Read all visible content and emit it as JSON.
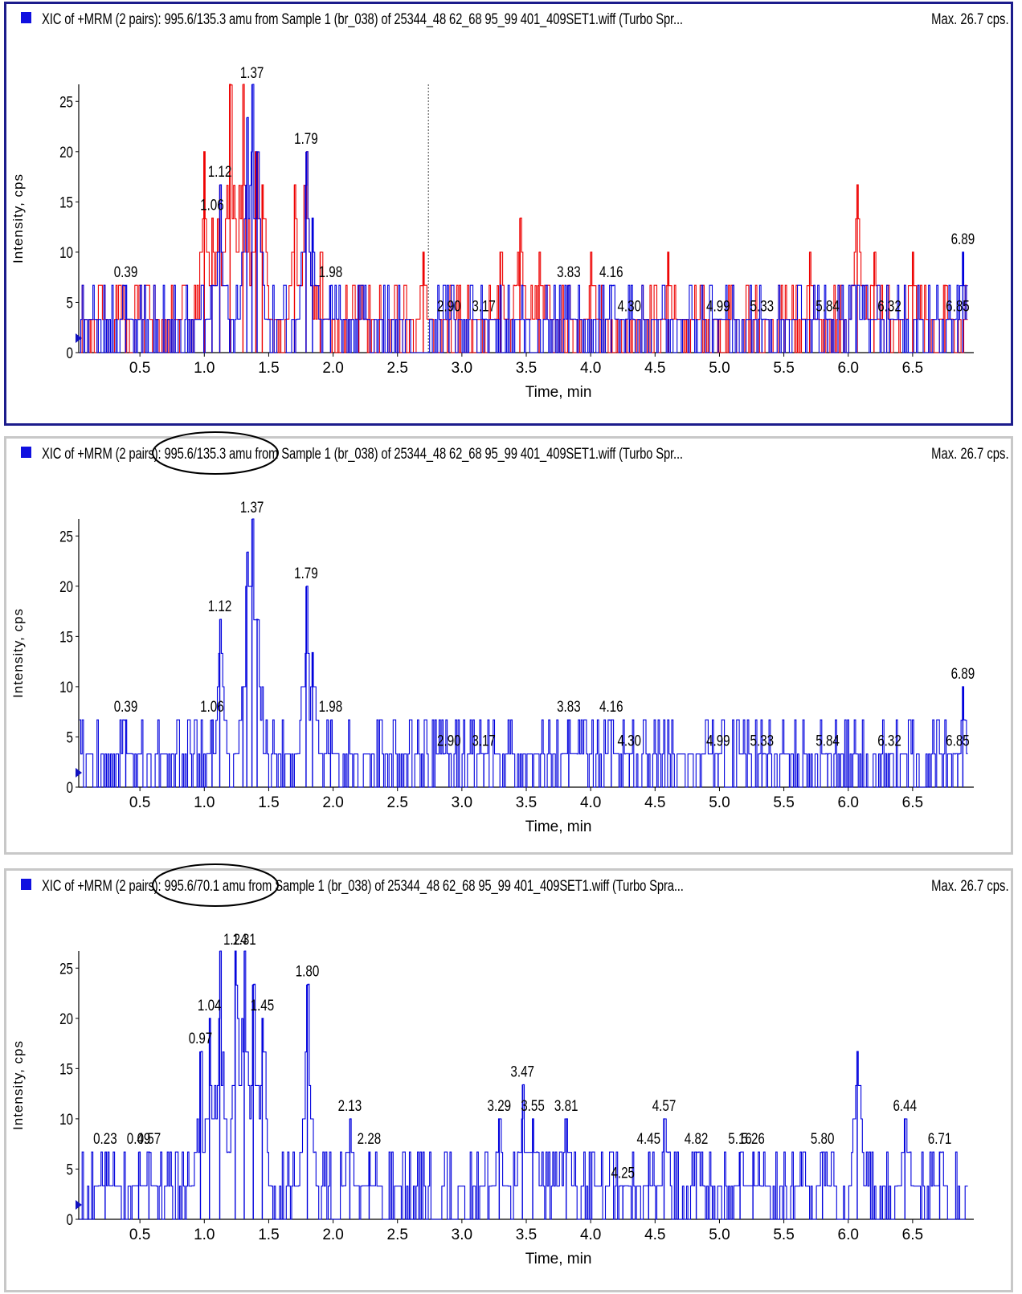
{
  "panels": [
    {
      "title": "XIC of +MRM (2 pairs): 995.6/135.3 amu from Sample 1 (br_038) of 25344_48 62_68 95_99 401_409SET1.wiff (Turbo Spr...",
      "max_label": "Max. 26.7 cps.",
      "selected": true
    },
    {
      "title": "XIC of +MRM (2 pairs): 995.6/135.3 amu from Sample 1 (br_038) of 25344_48 62_68 95_99 401_409SET1.wiff (Turbo Spr...",
      "max_label": "Max. 26.7 cps.",
      "selected": false
    },
    {
      "title": "XIC of +MRM (2 pairs): 995.6/70.1 amu from Sample 1 (br_038) of 25344_48 62_68 95_99 401_409SET1.wiff (Turbo Spra...",
      "max_label": "Max. 26.7 cps.",
      "selected": false
    }
  ],
  "colors": {
    "blue_trace": "#0000dd",
    "red_trace": "#ee0000",
    "selected_border": "#1c1c8c"
  },
  "chart_data": [
    {
      "type": "line",
      "xlabel": "Time, min",
      "ylabel": "Intensity, cps",
      "xlim": [
        0,
        6.95
      ],
      "ylim": [
        0,
        26.7
      ],
      "xticks": [
        0.5,
        1.0,
        1.5,
        2.0,
        2.5,
        3.0,
        3.5,
        4.0,
        4.5,
        5.0,
        5.5,
        6.0,
        6.5
      ],
      "yticks": [
        0,
        5,
        10,
        15,
        20,
        25
      ],
      "marker_line_x": 2.74,
      "series": [
        {
          "color": "#0000dd",
          "peaks": [
            [
              0.39,
              6.7
            ],
            [
              1.06,
              6.7
            ],
            [
              1.12,
              16.7
            ],
            [
              1.37,
              26.7
            ],
            [
              1.33,
              23.4
            ],
            [
              1.41,
              20
            ],
            [
              1.79,
              20
            ],
            [
              1.84,
              13.4
            ],
            [
              1.98,
              6.7
            ],
            [
              2.9,
              3.3
            ],
            [
              3.17,
              3.3
            ],
            [
              3.83,
              6.7
            ],
            [
              4.16,
              6.7
            ],
            [
              4.3,
              3.3
            ],
            [
              4.99,
              3.3
            ],
            [
              5.33,
              3.3
            ],
            [
              5.84,
              3.3
            ],
            [
              6.32,
              3.3
            ],
            [
              6.85,
              3.3
            ],
            [
              6.89,
              10
            ]
          ]
        },
        {
          "color": "#ee0000",
          "peaks": [
            [
              1.0,
              20
            ],
            [
              1.06,
              13.4
            ],
            [
              1.12,
              16.7
            ],
            [
              1.2,
              26.7
            ],
            [
              1.3,
              26.7
            ],
            [
              1.4,
              20
            ],
            [
              1.45,
              16.7
            ],
            [
              1.7,
              16.7
            ],
            [
              1.79,
              20
            ],
            [
              1.9,
              10
            ],
            [
              2.2,
              6.7
            ],
            [
              2.7,
              10
            ],
            [
              3.3,
              10
            ],
            [
              3.45,
              13.4
            ],
            [
              3.6,
              10
            ],
            [
              4.0,
              10
            ],
            [
              4.6,
              10
            ],
            [
              5.7,
              10
            ],
            [
              6.07,
              16.7
            ],
            [
              6.2,
              10
            ],
            [
              6.5,
              10
            ],
            [
              6.75,
              6.7
            ]
          ]
        }
      ],
      "peak_labels": [
        {
          "x": 0.39,
          "text": "0.39"
        },
        {
          "x": 1.06,
          "text": "1.06"
        },
        {
          "x": 1.12,
          "text": "1.12"
        },
        {
          "x": 1.37,
          "text": "1.37"
        },
        {
          "x": 1.79,
          "text": "1.79"
        },
        {
          "x": 1.98,
          "text": "1.98"
        },
        {
          "x": 2.9,
          "text": "2.90"
        },
        {
          "x": 3.17,
          "text": "3.17"
        },
        {
          "x": 3.83,
          "text": "3.83"
        },
        {
          "x": 4.16,
          "text": "4.16"
        },
        {
          "x": 4.3,
          "text": "4.30"
        },
        {
          "x": 4.99,
          "text": "4.99"
        },
        {
          "x": 5.33,
          "text": "5.33"
        },
        {
          "x": 5.84,
          "text": "5.84"
        },
        {
          "x": 6.32,
          "text": "6.32"
        },
        {
          "x": 6.85,
          "text": "6.85"
        },
        {
          "x": 6.89,
          "text": "6.89"
        }
      ]
    },
    {
      "type": "line",
      "xlabel": "Time, min",
      "ylabel": "Intensity, cps",
      "xlim": [
        0,
        6.95
      ],
      "ylim": [
        0,
        26.7
      ],
      "xticks": [
        0.5,
        1.0,
        1.5,
        2.0,
        2.5,
        3.0,
        3.5,
        4.0,
        4.5,
        5.0,
        5.5,
        6.0,
        6.5
      ],
      "yticks": [
        0,
        5,
        10,
        15,
        20,
        25
      ],
      "series": [
        {
          "color": "#0000dd",
          "peaks": [
            [
              0.39,
              6.7
            ],
            [
              1.06,
              6.7
            ],
            [
              1.12,
              16.7
            ],
            [
              1.3,
              10
            ],
            [
              1.37,
              26.7
            ],
            [
              1.33,
              23.4
            ],
            [
              1.41,
              16.7
            ],
            [
              1.79,
              20
            ],
            [
              1.84,
              13.4
            ],
            [
              1.98,
              6.7
            ],
            [
              2.9,
              3.3
            ],
            [
              3.17,
              3.3
            ],
            [
              3.83,
              6.7
            ],
            [
              4.16,
              6.7
            ],
            [
              4.3,
              3.3
            ],
            [
              4.99,
              3.3
            ],
            [
              5.33,
              3.3
            ],
            [
              5.84,
              3.3
            ],
            [
              6.32,
              3.3
            ],
            [
              6.85,
              3.3
            ],
            [
              6.89,
              10
            ]
          ]
        }
      ],
      "peak_labels": [
        {
          "x": 0.39,
          "text": "0.39"
        },
        {
          "x": 1.06,
          "text": "1.06"
        },
        {
          "x": 1.12,
          "text": "1.12"
        },
        {
          "x": 1.37,
          "text": "1.37"
        },
        {
          "x": 1.79,
          "text": "1.79"
        },
        {
          "x": 1.98,
          "text": "1.98"
        },
        {
          "x": 2.9,
          "text": "2.90"
        },
        {
          "x": 3.17,
          "text": "3.17"
        },
        {
          "x": 3.83,
          "text": "3.83"
        },
        {
          "x": 4.16,
          "text": "4.16"
        },
        {
          "x": 4.3,
          "text": "4.30"
        },
        {
          "x": 4.99,
          "text": "4.99"
        },
        {
          "x": 5.33,
          "text": "5.33"
        },
        {
          "x": 5.84,
          "text": "5.84"
        },
        {
          "x": 6.32,
          "text": "6.32"
        },
        {
          "x": 6.85,
          "text": "6.85"
        },
        {
          "x": 6.89,
          "text": "6.89"
        }
      ]
    },
    {
      "type": "line",
      "xlabel": "Time, min",
      "ylabel": "Intensity, cps",
      "xlim": [
        0,
        6.95
      ],
      "ylim": [
        0,
        26.7
      ],
      "xticks": [
        0.5,
        1.0,
        1.5,
        2.0,
        2.5,
        3.0,
        3.5,
        4.0,
        4.5,
        5.0,
        5.5,
        6.0,
        6.5
      ],
      "yticks": [
        0,
        5,
        10,
        15,
        20,
        25
      ],
      "series": [
        {
          "color": "#0000dd",
          "peaks": [
            [
              0.23,
              6.7
            ],
            [
              0.49,
              6.7
            ],
            [
              0.57,
              6.7
            ],
            [
              0.97,
              16.7
            ],
            [
              1.04,
              20
            ],
            [
              1.12,
              26.7
            ],
            [
              1.24,
              26.7
            ],
            [
              1.31,
              26.7
            ],
            [
              1.38,
              23.4
            ],
            [
              1.45,
              20
            ],
            [
              1.8,
              23.4
            ],
            [
              2.13,
              10
            ],
            [
              2.28,
              6.7
            ],
            [
              3.29,
              10
            ],
            [
              3.47,
              13.4
            ],
            [
              3.55,
              10
            ],
            [
              3.81,
              10
            ],
            [
              4.25,
              3.3
            ],
            [
              4.45,
              6.7
            ],
            [
              4.57,
              10
            ],
            [
              4.82,
              6.7
            ],
            [
              5.16,
              6.7
            ],
            [
              5.26,
              6.7
            ],
            [
              5.8,
              6.7
            ],
            [
              6.07,
              16.7
            ],
            [
              6.44,
              10
            ],
            [
              6.71,
              6.7
            ]
          ]
        }
      ],
      "peak_labels": [
        {
          "x": 0.23,
          "text": "0.23"
        },
        {
          "x": 0.49,
          "text": "0.49"
        },
        {
          "x": 0.57,
          "text": "0.57"
        },
        {
          "x": 0.97,
          "text": "0.97"
        },
        {
          "x": 1.04,
          "text": "1.04"
        },
        {
          "x": 1.24,
          "text": "1.24"
        },
        {
          "x": 1.31,
          "text": "1.31"
        },
        {
          "x": 1.45,
          "text": "1.45"
        },
        {
          "x": 1.8,
          "text": "1.80"
        },
        {
          "x": 2.13,
          "text": "2.13"
        },
        {
          "x": 2.28,
          "text": "2.28"
        },
        {
          "x": 3.29,
          "text": "3.29"
        },
        {
          "x": 3.47,
          "text": "3.47"
        },
        {
          "x": 3.55,
          "text": "3.55"
        },
        {
          "x": 3.81,
          "text": "3.81"
        },
        {
          "x": 4.25,
          "text": "4.25"
        },
        {
          "x": 4.45,
          "text": "4.45"
        },
        {
          "x": 4.57,
          "text": "4.57"
        },
        {
          "x": 4.82,
          "text": "4.82"
        },
        {
          "x": 5.16,
          "text": "5.16"
        },
        {
          "x": 5.26,
          "text": "5.26"
        },
        {
          "x": 5.8,
          "text": "5.80"
        },
        {
          "x": 6.44,
          "text": "6.44"
        },
        {
          "x": 6.71,
          "text": "6.71"
        }
      ]
    }
  ]
}
